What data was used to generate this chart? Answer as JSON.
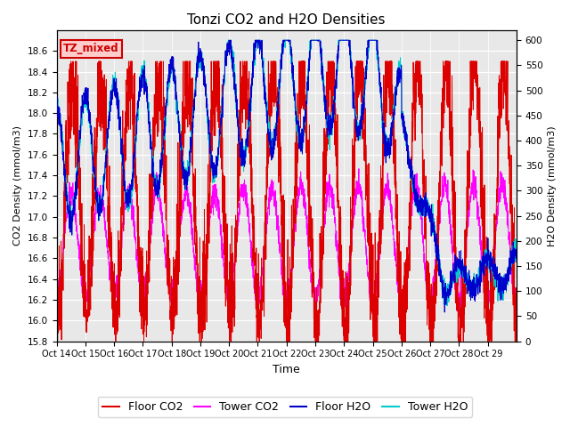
{
  "title": "Tonzi CO2 and H2O Densities",
  "xlabel": "Time",
  "ylabel_left": "CO2 Density (mmol/m3)",
  "ylabel_right": "H2O Density (mmol/m3)",
  "ylim_left": [
    15.8,
    18.8
  ],
  "ylim_right": [
    0,
    620
  ],
  "yticks_left": [
    15.8,
    16.0,
    16.2,
    16.4,
    16.6,
    16.8,
    17.0,
    17.2,
    17.4,
    17.6,
    17.8,
    18.0,
    18.2,
    18.4,
    18.6
  ],
  "yticks_right": [
    0,
    50,
    100,
    150,
    200,
    250,
    300,
    350,
    400,
    450,
    500,
    550,
    600
  ],
  "xtick_labels": [
    "Oct 14",
    "Oct 15",
    "Oct 16",
    "Oct 17",
    "Oct 18",
    "Oct 19",
    "Oct 20",
    "Oct 21",
    "Oct 22",
    "Oct 23",
    "Oct 24",
    "Oct 25",
    "Oct 26",
    "Oct 27",
    "Oct 28",
    "Oct 29"
  ],
  "colors": {
    "floor_co2": "#dd0000",
    "tower_co2": "#ff00ff",
    "floor_h2o": "#0000cc",
    "tower_h2o": "#00cccc"
  },
  "legend_labels": [
    "Floor CO2",
    "Tower CO2",
    "Floor H2O",
    "Tower H2O"
  ],
  "annotation_text": "TZ_mixed",
  "annotation_color": "#cc0000",
  "annotation_bg": "#ffcccc",
  "plot_bg": "#e8e8e8",
  "n_days": 16,
  "n_points": 2880
}
